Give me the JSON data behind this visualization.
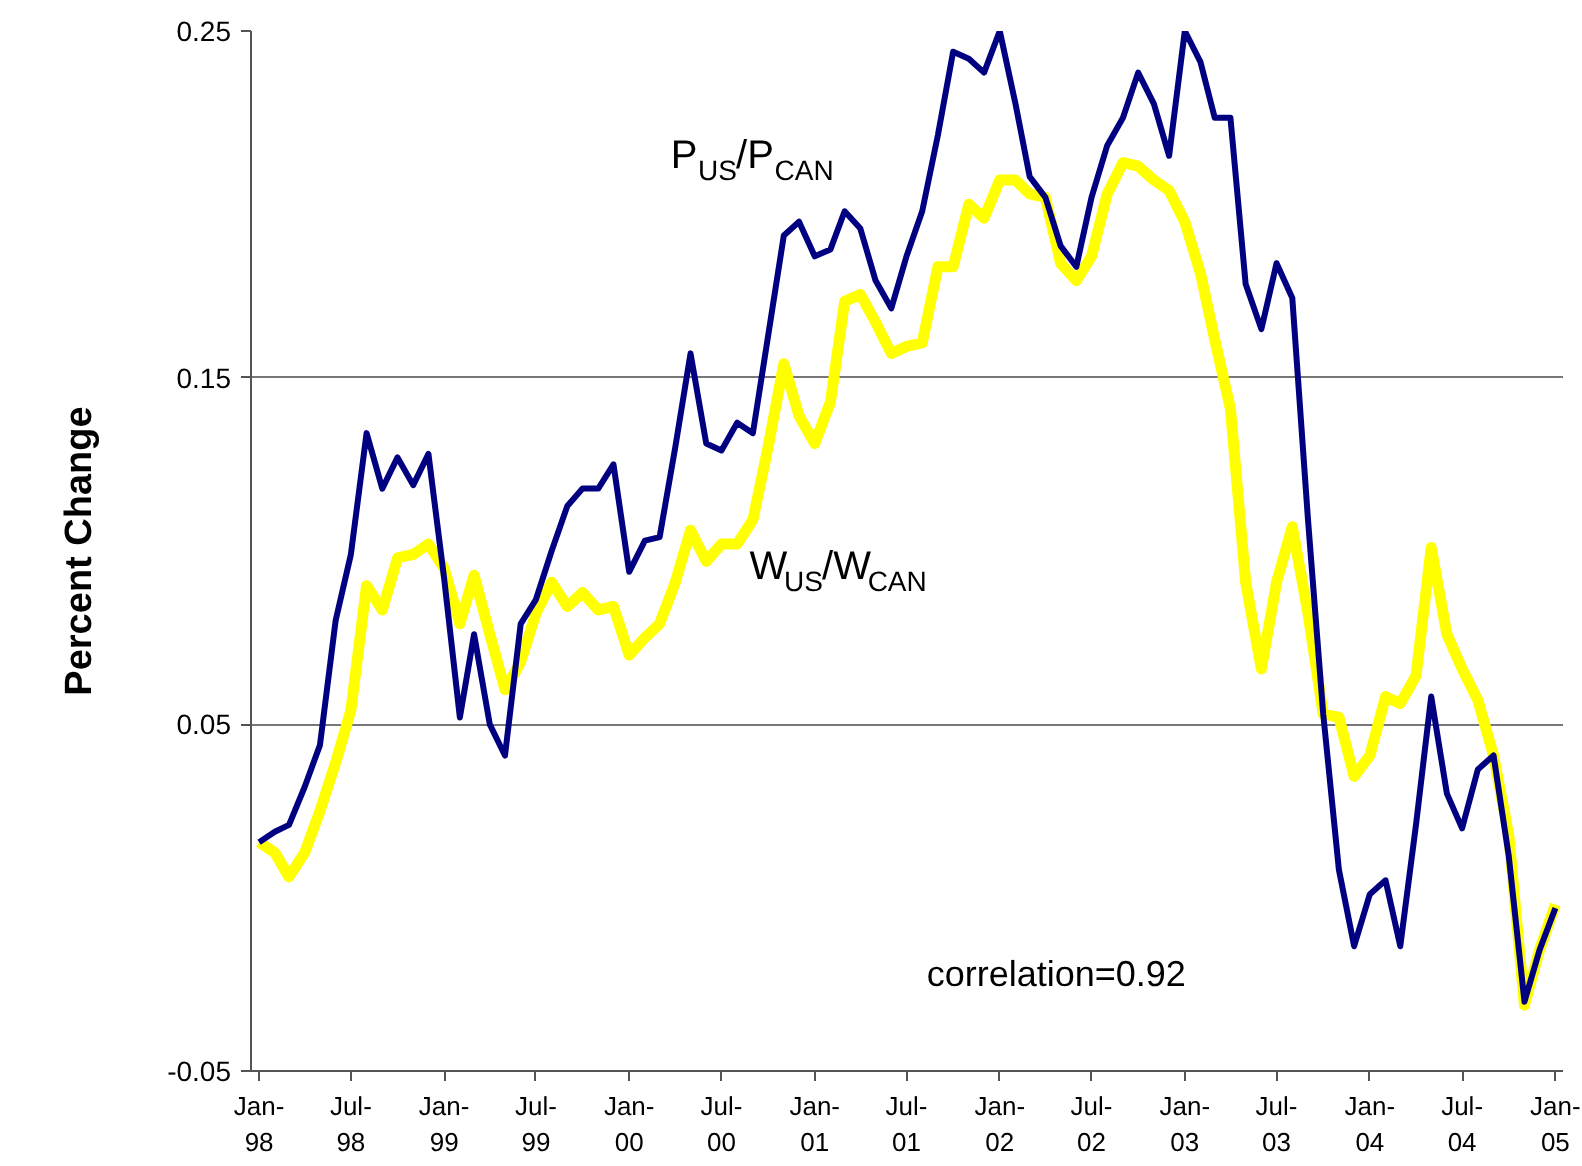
{
  "chart_data": {
    "type": "line",
    "ylabel": "Percent Change",
    "x": [
      "1998-01",
      "1998-02",
      "1998-03",
      "1998-04",
      "1998-05",
      "1998-06",
      "1998-07",
      "1998-08",
      "1998-09",
      "1998-10",
      "1998-11",
      "1998-12",
      "1999-01",
      "1999-02",
      "1999-03",
      "1999-04",
      "1999-05",
      "1999-06",
      "1999-07",
      "1999-08",
      "1999-09",
      "1999-10",
      "1999-11",
      "1999-12",
      "2000-01",
      "2000-02",
      "2000-03",
      "2000-04",
      "2000-05",
      "2000-06",
      "2000-07",
      "2000-08",
      "2000-09",
      "2000-10",
      "2000-11",
      "2000-12",
      "2001-01",
      "2001-02",
      "2001-03",
      "2001-04",
      "2001-05",
      "2001-06",
      "2001-07",
      "2001-08",
      "2001-09",
      "2001-10",
      "2001-11",
      "2001-12",
      "2002-01",
      "2002-02",
      "2002-03",
      "2002-04",
      "2002-05",
      "2002-06",
      "2002-07",
      "2002-08",
      "2002-09",
      "2002-10",
      "2002-11",
      "2002-12",
      "2003-01",
      "2003-02",
      "2003-03",
      "2003-04",
      "2003-05",
      "2003-06",
      "2003-07",
      "2003-08",
      "2003-09",
      "2003-10",
      "2003-11",
      "2003-12",
      "2004-01",
      "2004-02",
      "2004-03",
      "2004-04",
      "2004-05",
      "2004-06",
      "2004-07",
      "2004-08",
      "2004-09",
      "2004-10",
      "2004-11",
      "2004-12",
      "2005-01"
    ],
    "series": [
      {
        "name": "P$_{US}$/P$_{CAN}$",
        "color": "#000080",
        "values": [
          0.016,
          0.019,
          0.021,
          0.032,
          0.044,
          0.08,
          0.099,
          0.134,
          0.118,
          0.127,
          0.119,
          0.128,
          0.092,
          0.052,
          0.076,
          0.05,
          0.041,
          0.079,
          0.086,
          0.1,
          0.113,
          0.118,
          0.118,
          0.125,
          0.094,
          0.103,
          0.104,
          0.13,
          0.157,
          0.131,
          0.129,
          0.137,
          0.134,
          0.162,
          0.191,
          0.195,
          0.185,
          0.187,
          0.198,
          0.193,
          0.178,
          0.17,
          0.185,
          0.198,
          0.22,
          0.244,
          0.242,
          0.238,
          0.25,
          0.229,
          0.208,
          0.202,
          0.188,
          0.182,
          0.202,
          0.217,
          0.225,
          0.238,
          0.229,
          0.214,
          0.25,
          0.241,
          0.225,
          0.225,
          0.177,
          0.164,
          0.183,
          0.173,
          0.109,
          0.053,
          0.008,
          -0.014,
          0.001,
          0.005,
          -0.014,
          0.021,
          0.058,
          0.03,
          0.02,
          0.037,
          0.041,
          0.012,
          -0.03,
          -0.015,
          -0.003
        ]
      },
      {
        "name": "W$_{US}$/W$_{CAN}$",
        "color": "#ffff00",
        "values": [
          0.016,
          0.013,
          0.006,
          0.013,
          0.025,
          0.039,
          0.054,
          0.09,
          0.083,
          0.098,
          0.099,
          0.102,
          0.095,
          0.079,
          0.093,
          0.076,
          0.06,
          0.068,
          0.082,
          0.091,
          0.084,
          0.088,
          0.083,
          0.084,
          0.07,
          0.075,
          0.079,
          0.091,
          0.106,
          0.097,
          0.102,
          0.102,
          0.109,
          0.13,
          0.154,
          0.139,
          0.131,
          0.143,
          0.172,
          0.174,
          0.166,
          0.157,
          0.159,
          0.16,
          0.182,
          0.182,
          0.2,
          0.196,
          0.207,
          0.207,
          0.203,
          0.202,
          0.183,
          0.178,
          0.185,
          0.203,
          0.212,
          0.211,
          0.207,
          0.204,
          0.195,
          0.18,
          0.161,
          0.141,
          0.091,
          0.066,
          0.091,
          0.107,
          0.082,
          0.053,
          0.052,
          0.035,
          0.041,
          0.058,
          0.056,
          0.064,
          0.101,
          0.076,
          0.066,
          0.057,
          0.041,
          0.018,
          -0.031,
          -0.015,
          -0.002
        ]
      }
    ],
    "annotations": [
      "correlation=0.92"
    ],
    "xlim": [
      "1997-12-16",
      "2005-01-16"
    ],
    "xticks": [
      {
        "value": "1998-01",
        "label": "Jan-98"
      },
      {
        "value": "1998-07",
        "label": "Jul-98"
      },
      {
        "value": "1999-01",
        "label": "Jan-99"
      },
      {
        "value": "1999-07",
        "label": "Jul-99"
      },
      {
        "value": "2000-01",
        "label": "Jan-00"
      },
      {
        "value": "2000-07",
        "label": "Jul-00"
      },
      {
        "value": "2001-01",
        "label": "Jan-01"
      },
      {
        "value": "2001-07",
        "label": "Jul-01"
      },
      {
        "value": "2002-01",
        "label": "Jan-02"
      },
      {
        "value": "2002-07",
        "label": "Jul-02"
      },
      {
        "value": "2003-01",
        "label": "Jan-03"
      },
      {
        "value": "2003-07",
        "label": "Jul-03"
      },
      {
        "value": "2004-01",
        "label": "Jan-04"
      },
      {
        "value": "2004-07",
        "label": "Jul-04"
      },
      {
        "value": "2005-01",
        "label": "Jan-05"
      }
    ],
    "ylim": [
      -0.05,
      0.25
    ],
    "yticks": [
      -0.05,
      0.05,
      0.15,
      0.25
    ],
    "grid": "y",
    "legend": false,
    "marker": "none",
    "line_style": "solid"
  }
}
